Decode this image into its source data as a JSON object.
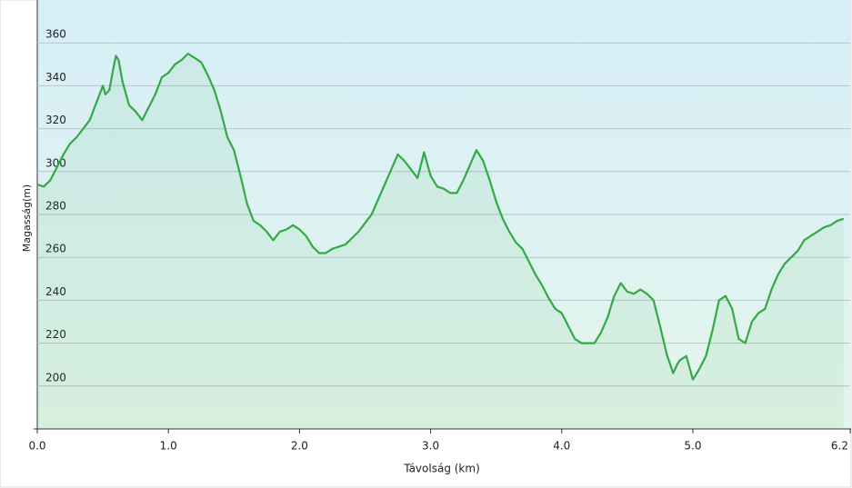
{
  "chart_data": {
    "type": "line",
    "x_label": "Távolság (km)",
    "y_label": "Magasság(m)",
    "color": "#33aa44",
    "x": [
      0,
      0.05,
      0.1,
      0.15,
      0.2,
      0.25,
      0.3,
      0.35,
      0.4,
      0.45,
      0.5,
      0.52,
      0.55,
      0.58,
      0.6,
      0.62,
      0.65,
      0.7,
      0.75,
      0.8,
      0.85,
      0.9,
      0.95,
      1.0,
      1.05,
      1.1,
      1.15,
      1.2,
      1.25,
      1.3,
      1.35,
      1.4,
      1.45,
      1.5,
      1.55,
      1.6,
      1.65,
      1.7,
      1.75,
      1.8,
      1.85,
      1.9,
      1.95,
      2.0,
      2.05,
      2.1,
      2.15,
      2.2,
      2.25,
      2.3,
      2.35,
      2.4,
      2.45,
      2.5,
      2.55,
      2.6,
      2.65,
      2.7,
      2.75,
      2.8,
      2.85,
      2.9,
      2.95,
      3.0,
      3.05,
      3.1,
      3.15,
      3.2,
      3.25,
      3.3,
      3.35,
      3.4,
      3.45,
      3.5,
      3.55,
      3.6,
      3.65,
      3.7,
      3.75,
      3.8,
      3.85,
      3.9,
      3.95,
      4.0,
      4.05,
      4.1,
      4.15,
      4.2,
      4.25,
      4.3,
      4.35,
      4.4,
      4.45,
      4.5,
      4.55,
      4.6,
      4.65,
      4.7,
      4.75,
      4.8,
      4.85,
      4.88,
      4.9,
      4.95,
      5.0,
      5.05,
      5.1,
      5.15,
      5.2,
      5.25,
      5.3,
      5.35,
      5.4,
      5.45,
      5.5,
      5.55,
      5.6,
      5.65,
      5.7,
      5.75,
      5.8,
      5.85,
      5.9,
      5.95,
      6.0,
      6.05,
      6.1,
      6.15
    ],
    "values": [
      294,
      293,
      296,
      302,
      308,
      313,
      316,
      320,
      324,
      332,
      340,
      336,
      338,
      348,
      354,
      352,
      342,
      331,
      328,
      324,
      330,
      336,
      344,
      346,
      350,
      352,
      355,
      353,
      351,
      345,
      338,
      328,
      316,
      310,
      298,
      285,
      277,
      275,
      272,
      268,
      272,
      273,
      275,
      273,
      270,
      265,
      262,
      262,
      264,
      265,
      266,
      269,
      272,
      276,
      280,
      287,
      294,
      301,
      308,
      305,
      301,
      297,
      309,
      298,
      293,
      292,
      290,
      290,
      296,
      303,
      310,
      305,
      296,
      286,
      278,
      272,
      267,
      264,
      258,
      252,
      247,
      241,
      236,
      234,
      228,
      222,
      220,
      220,
      220,
      225,
      232,
      242,
      248,
      244,
      243,
      245,
      243,
      240,
      228,
      215,
      206,
      210,
      212,
      214,
      203,
      208,
      214,
      226,
      240,
      242,
      236,
      222,
      220,
      230,
      234,
      236,
      245,
      252,
      257,
      260,
      263,
      268,
      270,
      272,
      274,
      275,
      277,
      278
    ],
    "xlim": [
      0,
      6.2
    ],
    "ylim": [
      180,
      380
    ],
    "xticks": [
      {
        "value": 0,
        "label": "0.0"
      },
      {
        "value": 1,
        "label": "1.0"
      },
      {
        "value": 2,
        "label": "2.0"
      },
      {
        "value": 3,
        "label": "3.0"
      },
      {
        "value": 4,
        "label": "4.0"
      },
      {
        "value": 5,
        "label": "5.0"
      },
      {
        "value": 6.2,
        "label": "6.2"
      }
    ],
    "yticks": [
      200,
      220,
      240,
      260,
      280,
      300,
      320,
      340,
      360
    ],
    "grid": true
  }
}
